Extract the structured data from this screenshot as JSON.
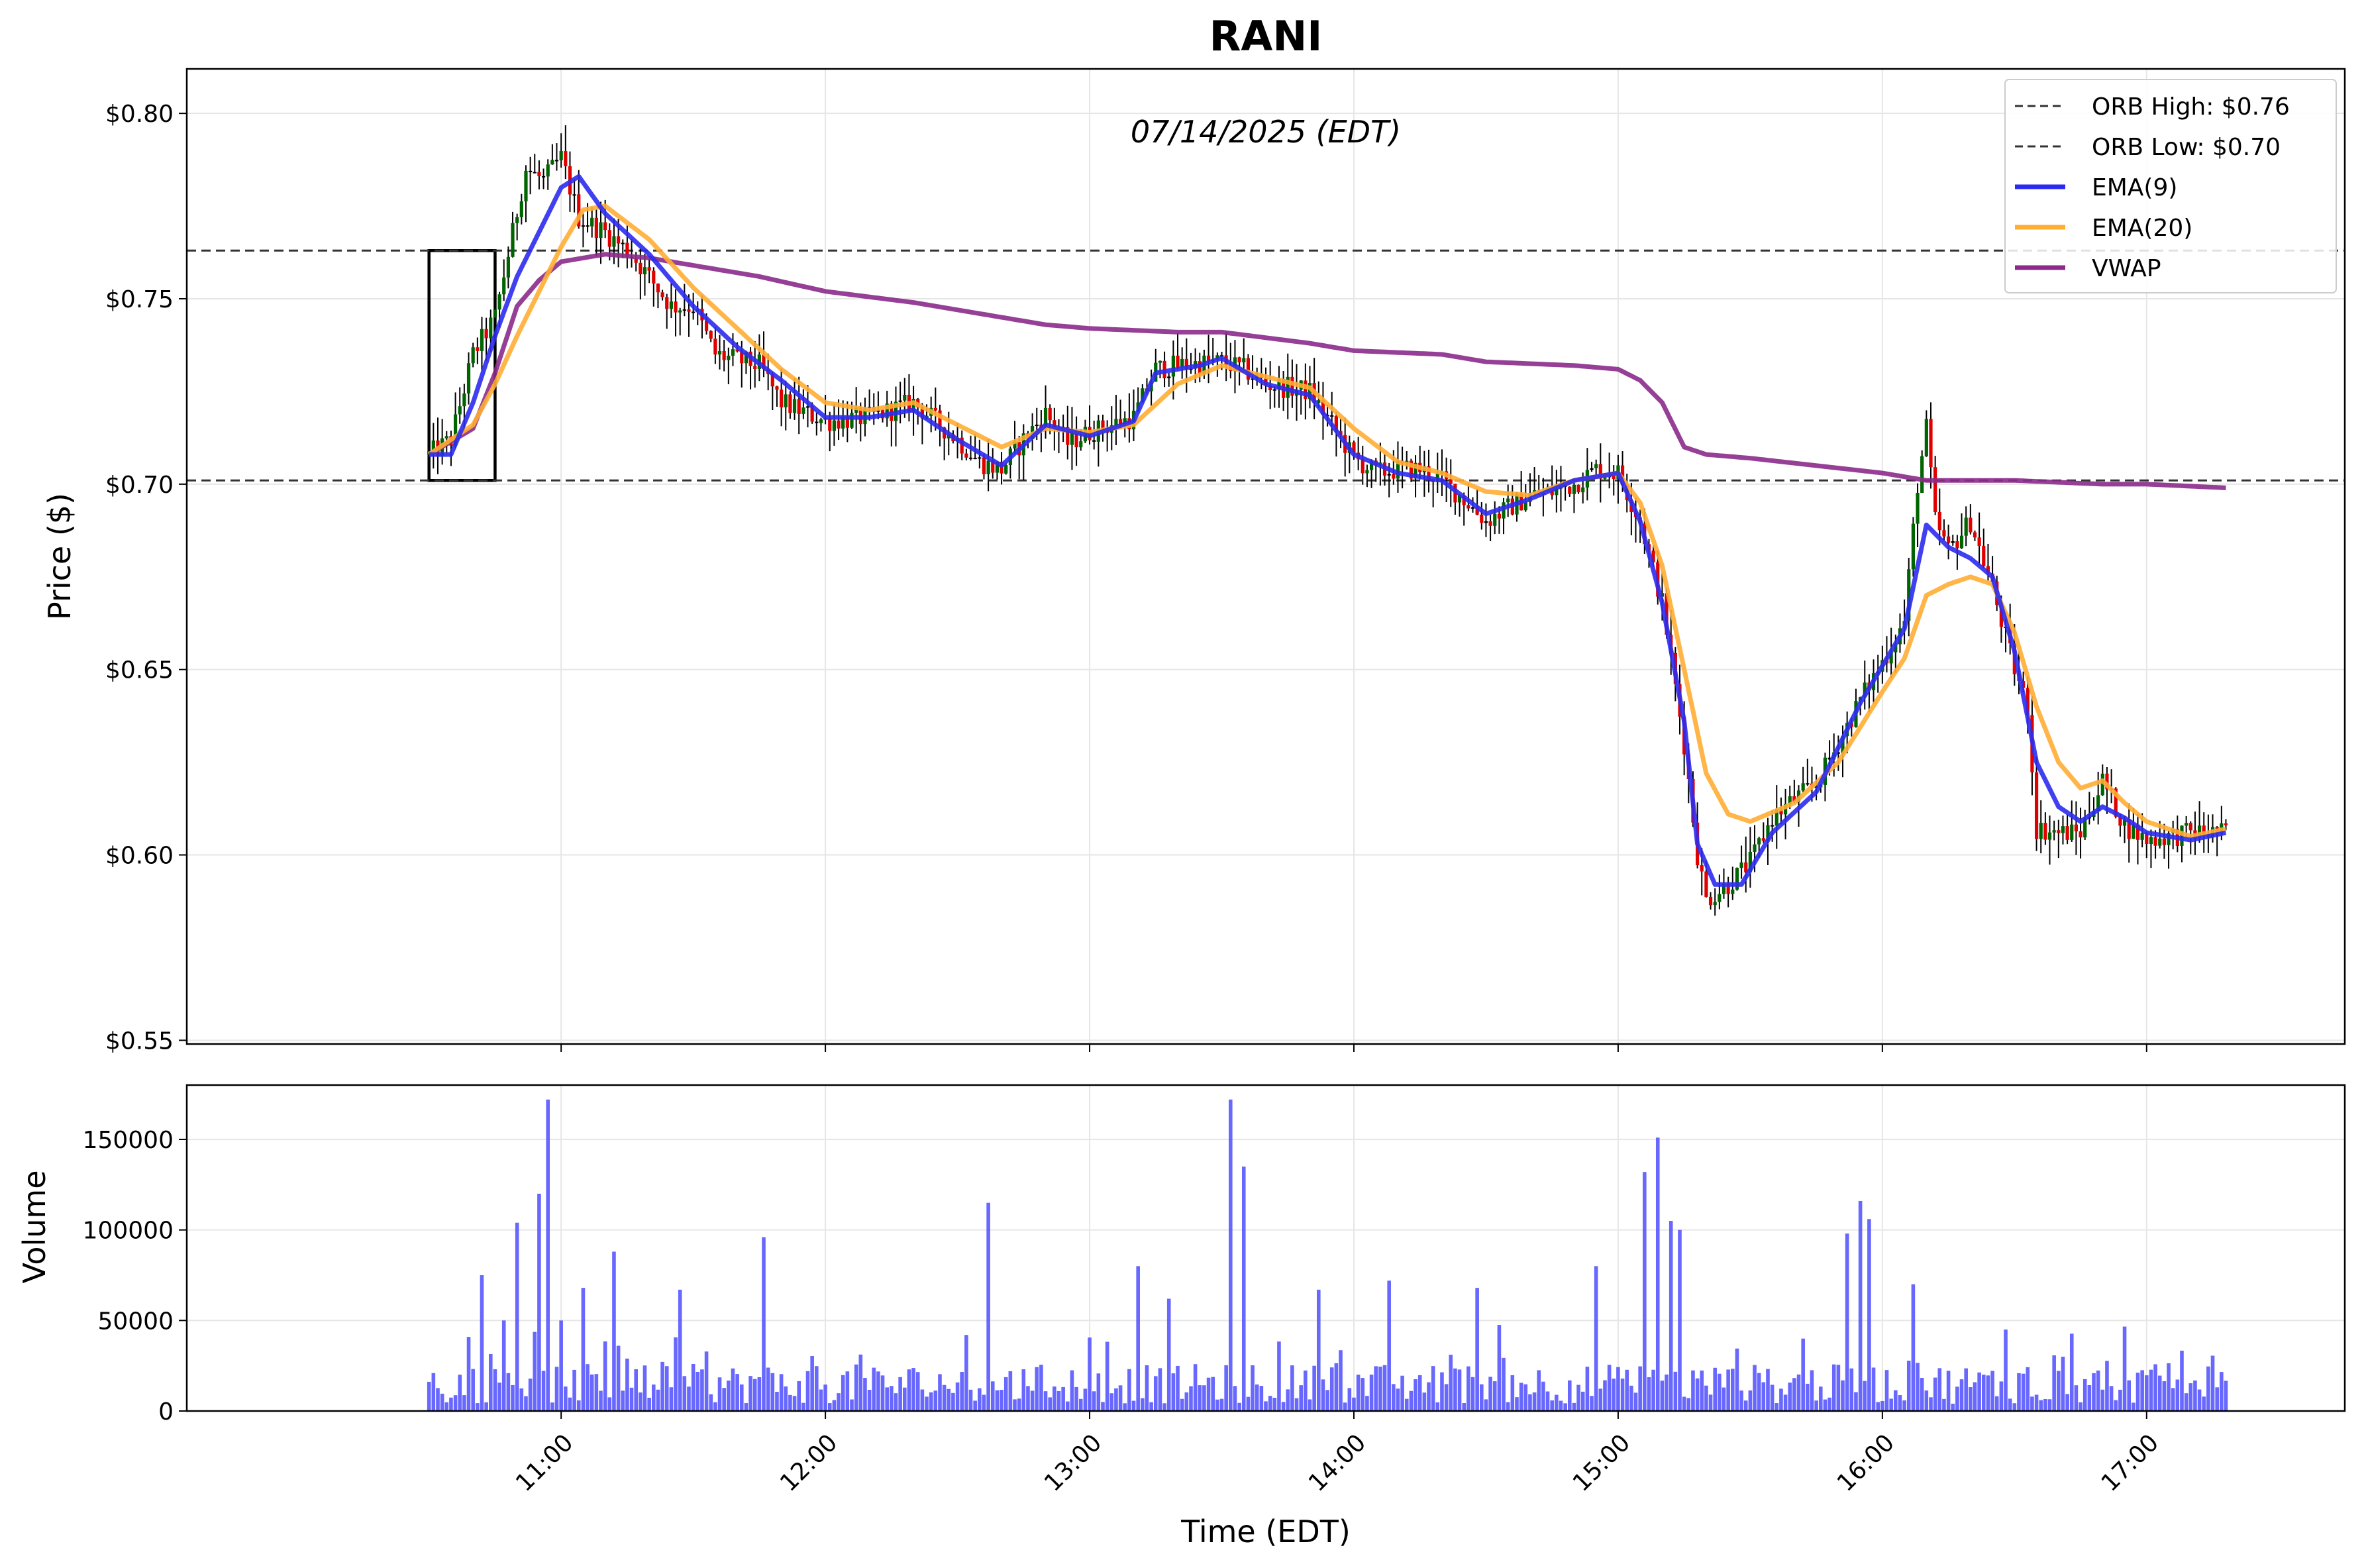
{
  "chart_data": {
    "type": "candlestick",
    "title": "RANI",
    "subtitle": "07/14/2025 (EDT)",
    "xlabel": "Time (EDT)",
    "price_panel": {
      "ylabel": "Price ($)",
      "ylim": [
        0.549,
        0.812
      ],
      "yticks": [
        0.55,
        0.6,
        0.65,
        0.7,
        0.75,
        0.8
      ],
      "ytick_labels": [
        "$0.55",
        "$0.60",
        "$0.65",
        "$0.70",
        "$0.75",
        "$0.80"
      ],
      "grid": true,
      "orb_box": {
        "start": "10:30",
        "end": "10:45",
        "high": 0.763,
        "low": 0.701
      },
      "orb_high": 0.763,
      "orb_low": 0.701,
      "legend_position": "top-right",
      "legend": [
        {
          "label": "ORB High: $0.76",
          "style": "dashed",
          "color": "#333333"
        },
        {
          "label": "ORB Low: $0.70",
          "style": "dashed",
          "color": "#333333"
        },
        {
          "label": "EMA(9)",
          "style": "solid",
          "color": "#2b2bf0"
        },
        {
          "label": "EMA(20)",
          "style": "solid",
          "color": "#ffad33"
        },
        {
          "label": "VWAP",
          "style": "solid",
          "color": "#8b2a8b"
        }
      ],
      "candle_colors": {
        "up": "#006400",
        "down": "#e00000",
        "flat": "#000000"
      },
      "anchors": {
        "price": [
          [
            "10:30",
            0.708
          ],
          [
            "10:35",
            0.712
          ],
          [
            "10:40",
            0.735
          ],
          [
            "10:45",
            0.745
          ],
          [
            "10:48",
            0.762
          ],
          [
            "10:52",
            0.785
          ],
          [
            "10:56",
            0.782
          ],
          [
            "11:00",
            0.788
          ],
          [
            "11:04",
            0.772
          ],
          [
            "11:10",
            0.768
          ],
          [
            "11:16",
            0.762
          ],
          [
            "11:25",
            0.748
          ],
          [
            "11:30",
            0.748
          ],
          [
            "11:35",
            0.735
          ],
          [
            "11:45",
            0.732
          ],
          [
            "11:50",
            0.722
          ],
          [
            "12:00",
            0.717
          ],
          [
            "12:10",
            0.718
          ],
          [
            "12:20",
            0.722
          ],
          [
            "12:30",
            0.712
          ],
          [
            "12:35",
            0.706
          ],
          [
            "12:40",
            0.704
          ],
          [
            "12:45",
            0.712
          ],
          [
            "12:50",
            0.719
          ],
          [
            "12:55",
            0.711
          ],
          [
            "13:00",
            0.714
          ],
          [
            "13:10",
            0.718
          ],
          [
            "13:15",
            0.731
          ],
          [
            "13:20",
            0.732
          ],
          [
            "13:30",
            0.733
          ],
          [
            "13:35",
            0.731
          ],
          [
            "13:40",
            0.727
          ],
          [
            "13:50",
            0.725
          ],
          [
            "13:55",
            0.716
          ],
          [
            "14:00",
            0.707
          ],
          [
            "14:05",
            0.703
          ],
          [
            "14:10",
            0.704
          ],
          [
            "14:15",
            0.704
          ],
          [
            "14:20",
            0.701
          ],
          [
            "14:25",
            0.696
          ],
          [
            "14:30",
            0.69
          ],
          [
            "14:40",
            0.697
          ],
          [
            "14:45",
            0.698
          ],
          [
            "14:50",
            0.7
          ],
          [
            "14:55",
            0.704
          ],
          [
            "15:00",
            0.703
          ],
          [
            "15:05",
            0.69
          ],
          [
            "15:10",
            0.668
          ],
          [
            "15:15",
            0.63
          ],
          [
            "15:18",
            0.6
          ],
          [
            "15:20",
            0.588
          ],
          [
            "15:25",
            0.592
          ],
          [
            "15:30",
            0.598
          ],
          [
            "15:35",
            0.61
          ],
          [
            "15:40",
            0.615
          ],
          [
            "15:45",
            0.619
          ],
          [
            "15:50",
            0.63
          ],
          [
            "15:55",
            0.642
          ],
          [
            "16:00",
            0.652
          ],
          [
            "16:05",
            0.663
          ],
          [
            "16:08",
            0.7
          ],
          [
            "16:10",
            0.715
          ],
          [
            "16:12",
            0.69
          ],
          [
            "16:15",
            0.682
          ],
          [
            "16:20",
            0.69
          ],
          [
            "16:25",
            0.672
          ],
          [
            "16:30",
            0.65
          ],
          [
            "16:33",
            0.64
          ],
          [
            "16:35",
            0.607
          ],
          [
            "16:40",
            0.606
          ],
          [
            "16:45",
            0.606
          ],
          [
            "16:50",
            0.62
          ],
          [
            "16:55",
            0.608
          ],
          [
            "17:00",
            0.604
          ],
          [
            "17:10",
            0.606
          ],
          [
            "17:18",
            0.606
          ]
        ],
        "ema9": [
          [
            "10:30",
            0.708
          ],
          [
            "10:35",
            0.708
          ],
          [
            "10:40",
            0.722
          ],
          [
            "10:45",
            0.74
          ],
          [
            "10:50",
            0.756
          ],
          [
            "10:55",
            0.768
          ],
          [
            "11:00",
            0.78
          ],
          [
            "11:04",
            0.783
          ],
          [
            "11:10",
            0.773
          ],
          [
            "11:20",
            0.762
          ],
          [
            "11:30",
            0.748
          ],
          [
            "11:40",
            0.737
          ],
          [
            "11:50",
            0.728
          ],
          [
            "12:00",
            0.718
          ],
          [
            "12:10",
            0.718
          ],
          [
            "12:20",
            0.72
          ],
          [
            "12:30",
            0.712
          ],
          [
            "12:40",
            0.705
          ],
          [
            "12:50",
            0.716
          ],
          [
            "13:00",
            0.713
          ],
          [
            "13:10",
            0.717
          ],
          [
            "13:15",
            0.73
          ],
          [
            "13:25",
            0.732
          ],
          [
            "13:30",
            0.734
          ],
          [
            "13:40",
            0.727
          ],
          [
            "13:50",
            0.724
          ],
          [
            "14:00",
            0.708
          ],
          [
            "14:10",
            0.703
          ],
          [
            "14:20",
            0.701
          ],
          [
            "14:30",
            0.692
          ],
          [
            "14:40",
            0.696
          ],
          [
            "14:50",
            0.701
          ],
          [
            "15:00",
            0.703
          ],
          [
            "15:05",
            0.69
          ],
          [
            "15:10",
            0.668
          ],
          [
            "15:15",
            0.636
          ],
          [
            "15:18",
            0.603
          ],
          [
            "15:22",
            0.592
          ],
          [
            "15:28",
            0.592
          ],
          [
            "15:35",
            0.606
          ],
          [
            "15:45",
            0.617
          ],
          [
            "15:55",
            0.641
          ],
          [
            "16:05",
            0.661
          ],
          [
            "16:10",
            0.689
          ],
          [
            "16:15",
            0.683
          ],
          [
            "16:20",
            0.68
          ],
          [
            "16:25",
            0.675
          ],
          [
            "16:30",
            0.655
          ],
          [
            "16:35",
            0.625
          ],
          [
            "16:40",
            0.613
          ],
          [
            "16:45",
            0.609
          ],
          [
            "16:50",
            0.613
          ],
          [
            "16:55",
            0.61
          ],
          [
            "17:00",
            0.606
          ],
          [
            "17:10",
            0.604
          ],
          [
            "17:18",
            0.606
          ]
        ],
        "ema20": [
          [
            "10:30",
            0.708
          ],
          [
            "10:40",
            0.716
          ],
          [
            "10:45",
            0.727
          ],
          [
            "10:50",
            0.74
          ],
          [
            "10:55",
            0.752
          ],
          [
            "11:00",
            0.764
          ],
          [
            "11:05",
            0.774
          ],
          [
            "11:10",
            0.775
          ],
          [
            "11:20",
            0.766
          ],
          [
            "11:30",
            0.753
          ],
          [
            "11:40",
            0.742
          ],
          [
            "11:50",
            0.731
          ],
          [
            "12:00",
            0.722
          ],
          [
            "12:10",
            0.72
          ],
          [
            "12:20",
            0.722
          ],
          [
            "12:30",
            0.716
          ],
          [
            "12:40",
            0.71
          ],
          [
            "12:50",
            0.715
          ],
          [
            "13:00",
            0.714
          ],
          [
            "13:10",
            0.716
          ],
          [
            "13:20",
            0.727
          ],
          [
            "13:30",
            0.732
          ],
          [
            "13:40",
            0.729
          ],
          [
            "13:50",
            0.726
          ],
          [
            "14:00",
            0.715
          ],
          [
            "14:10",
            0.706
          ],
          [
            "14:20",
            0.703
          ],
          [
            "14:30",
            0.698
          ],
          [
            "14:40",
            0.697
          ],
          [
            "14:50",
            0.701
          ],
          [
            "15:00",
            0.703
          ],
          [
            "15:05",
            0.695
          ],
          [
            "15:10",
            0.678
          ],
          [
            "15:15",
            0.65
          ],
          [
            "15:20",
            0.622
          ],
          [
            "15:25",
            0.611
          ],
          [
            "15:30",
            0.609
          ],
          [
            "15:40",
            0.614
          ],
          [
            "15:50",
            0.625
          ],
          [
            "16:00",
            0.644
          ],
          [
            "16:05",
            0.653
          ],
          [
            "16:10",
            0.67
          ],
          [
            "16:15",
            0.673
          ],
          [
            "16:20",
            0.675
          ],
          [
            "16:25",
            0.673
          ],
          [
            "16:30",
            0.66
          ],
          [
            "16:35",
            0.64
          ],
          [
            "16:40",
            0.625
          ],
          [
            "16:45",
            0.618
          ],
          [
            "16:50",
            0.62
          ],
          [
            "16:55",
            0.614
          ],
          [
            "17:00",
            0.609
          ],
          [
            "17:10",
            0.605
          ],
          [
            "17:18",
            0.607
          ]
        ],
        "vwap": [
          [
            "10:30",
            0.708
          ],
          [
            "10:40",
            0.715
          ],
          [
            "10:45",
            0.73
          ],
          [
            "10:50",
            0.748
          ],
          [
            "10:55",
            0.755
          ],
          [
            "11:00",
            0.76
          ],
          [
            "11:10",
            0.762
          ],
          [
            "11:20",
            0.761
          ],
          [
            "11:30",
            0.759
          ],
          [
            "11:45",
            0.756
          ],
          [
            "12:00",
            0.752
          ],
          [
            "12:20",
            0.749
          ],
          [
            "12:30",
            0.747
          ],
          [
            "12:40",
            0.745
          ],
          [
            "12:50",
            0.743
          ],
          [
            "13:00",
            0.742
          ],
          [
            "13:20",
            0.741
          ],
          [
            "13:30",
            0.741
          ],
          [
            "13:50",
            0.738
          ],
          [
            "14:00",
            0.736
          ],
          [
            "14:20",
            0.735
          ],
          [
            "14:30",
            0.733
          ],
          [
            "14:50",
            0.732
          ],
          [
            "15:00",
            0.731
          ],
          [
            "15:05",
            0.728
          ],
          [
            "15:10",
            0.722
          ],
          [
            "15:15",
            0.71
          ],
          [
            "15:20",
            0.708
          ],
          [
            "15:30",
            0.707
          ],
          [
            "15:45",
            0.705
          ],
          [
            "16:00",
            0.703
          ],
          [
            "16:10",
            0.701
          ],
          [
            "16:30",
            0.701
          ],
          [
            "16:50",
            0.7
          ],
          [
            "17:00",
            0.7
          ],
          [
            "17:18",
            0.699
          ]
        ]
      }
    },
    "volume_panel": {
      "ylabel": "Volume",
      "ylim": [
        0,
        180000
      ],
      "yticks": [
        0,
        50000,
        100000,
        150000
      ],
      "ytick_labels": [
        "0",
        "50000",
        "100000",
        "150000"
      ],
      "bar_color": "#4d4dff",
      "grid": true,
      "peaks": [
        [
          "10:42",
          75000
        ],
        [
          "10:47",
          50000
        ],
        [
          "10:50",
          104000
        ],
        [
          "10:55",
          120000
        ],
        [
          "10:57",
          172000
        ],
        [
          "11:00",
          50000
        ],
        [
          "11:05",
          68000
        ],
        [
          "11:12",
          88000
        ],
        [
          "11:27",
          67000
        ],
        [
          "11:46",
          96000
        ],
        [
          "12:32",
          42000
        ],
        [
          "12:37",
          115000
        ],
        [
          "13:11",
          80000
        ],
        [
          "13:18",
          62000
        ],
        [
          "13:32",
          172000
        ],
        [
          "13:35",
          135000
        ],
        [
          "13:52",
          67000
        ],
        [
          "14:08",
          72000
        ],
        [
          "14:28",
          68000
        ],
        [
          "14:55",
          80000
        ],
        [
          "15:06",
          132000
        ],
        [
          "15:09",
          151000
        ],
        [
          "15:12",
          105000
        ],
        [
          "15:14",
          100000
        ],
        [
          "15:42",
          40000
        ],
        [
          "15:52",
          98000
        ],
        [
          "15:55",
          116000
        ],
        [
          "15:57",
          106000
        ],
        [
          "16:07",
          70000
        ],
        [
          "16:28",
          45000
        ],
        [
          "16:41",
          30000
        ]
      ]
    },
    "xticks": [
      "11:00",
      "12:00",
      "13:00",
      "14:00",
      "15:00",
      "16:00",
      "17:00"
    ],
    "x_range": [
      "09:35",
      "17:45"
    ]
  }
}
